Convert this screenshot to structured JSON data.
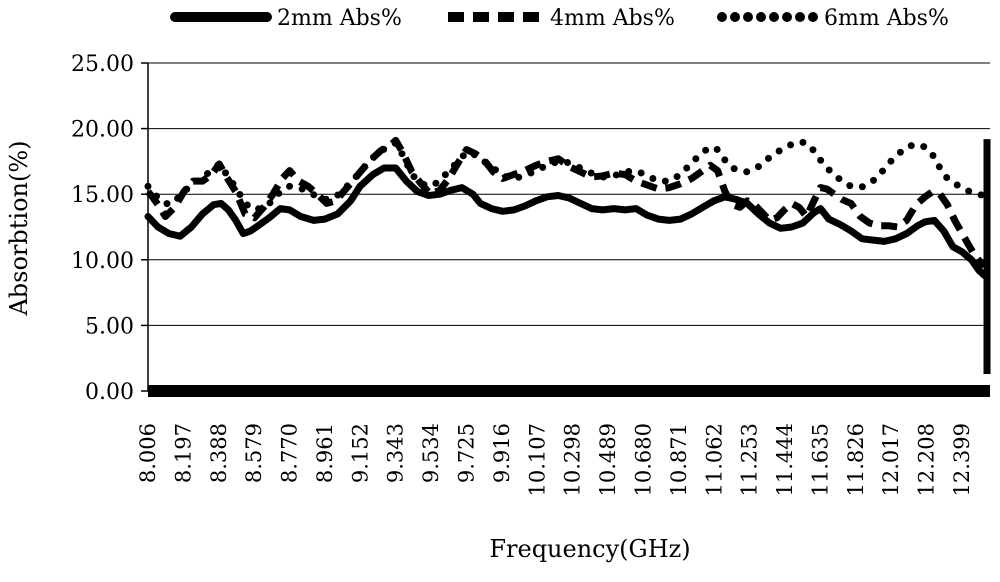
{
  "chart_data": {
    "type": "line",
    "title": "",
    "xlabel": "Frequency(GHz)",
    "ylabel": "Absorbtion(%)",
    "ylim": [
      0,
      25
    ],
    "xlim": [
      8.006,
      12.55
    ],
    "y_ticks": [
      "0.00",
      "5.00",
      "10.00",
      "15.00",
      "20.00",
      "25.00"
    ],
    "x_ticks": [
      "8.006",
      "8.197",
      "8.388",
      "8.579",
      "8.770",
      "8.961",
      "9.152",
      "9.343",
      "9.534",
      "9.725",
      "9.916",
      "10.107",
      "10.298",
      "10.489",
      "10.680",
      "10.871",
      "11.062",
      "11.253",
      "11.444",
      "11.635",
      "11.826",
      "12.017",
      "12.208",
      "12.399"
    ],
    "grid": "horizontal",
    "legend_position": "top",
    "series": [
      {
        "name": "2mm Abs%",
        "style": "solid",
        "x": [
          8.006,
          8.06,
          8.12,
          8.18,
          8.24,
          8.3,
          8.36,
          8.4,
          8.44,
          8.48,
          8.52,
          8.56,
          8.6,
          8.66,
          8.72,
          8.77,
          8.83,
          8.9,
          8.96,
          9.03,
          9.1,
          9.15,
          9.22,
          9.28,
          9.343,
          9.4,
          9.46,
          9.52,
          9.58,
          9.64,
          9.7,
          9.76,
          9.8,
          9.86,
          9.92,
          9.98,
          10.04,
          10.1,
          10.16,
          10.22,
          10.28,
          10.34,
          10.4,
          10.46,
          10.52,
          10.58,
          10.64,
          10.7,
          10.76,
          10.82,
          10.88,
          10.94,
          11.0,
          11.06,
          11.12,
          11.18,
          11.24,
          11.3,
          11.36,
          11.42,
          11.48,
          11.54,
          11.6,
          11.635,
          11.68,
          11.74,
          11.8,
          11.86,
          11.92,
          11.98,
          12.04,
          12.1,
          12.16,
          12.2,
          12.25,
          12.3,
          12.35,
          12.4,
          12.45,
          12.49,
          12.52
        ],
        "y": [
          13.3,
          12.5,
          12.0,
          11.8,
          12.5,
          13.5,
          14.2,
          14.3,
          13.8,
          13.0,
          12.0,
          12.2,
          12.6,
          13.2,
          13.9,
          13.8,
          13.3,
          13.0,
          13.1,
          13.5,
          14.5,
          15.6,
          16.5,
          17.0,
          17.0,
          16.0,
          15.2,
          14.9,
          15.0,
          15.3,
          15.5,
          15.0,
          14.3,
          13.9,
          13.7,
          13.8,
          14.1,
          14.5,
          14.8,
          14.9,
          14.7,
          14.3,
          13.9,
          13.8,
          13.9,
          13.8,
          13.9,
          13.4,
          13.1,
          13.0,
          13.1,
          13.5,
          14.0,
          14.5,
          14.8,
          14.6,
          14.3,
          13.5,
          12.8,
          12.4,
          12.5,
          12.8,
          13.6,
          13.9,
          13.1,
          12.7,
          12.2,
          11.6,
          11.5,
          11.4,
          11.6,
          12.0,
          12.6,
          12.9,
          13.0,
          12.2,
          11.0,
          10.6,
          10.0,
          9.2,
          8.8
        ]
      },
      {
        "name": "4mm Abs%",
        "style": "dashed",
        "x": [
          8.006,
          8.03,
          8.06,
          8.1,
          8.15,
          8.2,
          8.25,
          8.3,
          8.35,
          8.39,
          8.43,
          8.48,
          8.53,
          8.58,
          8.63,
          8.68,
          8.73,
          8.77,
          8.82,
          8.87,
          8.92,
          8.97,
          9.02,
          9.08,
          9.14,
          9.2,
          9.26,
          9.32,
          9.343,
          9.38,
          9.43,
          9.48,
          9.53,
          9.58,
          9.63,
          9.68,
          9.725,
          9.77,
          9.82,
          9.87,
          9.92,
          9.98,
          10.04,
          10.1,
          10.16,
          10.22,
          10.28,
          10.34,
          10.4,
          10.46,
          10.52,
          10.58,
          10.64,
          10.7,
          10.76,
          10.82,
          10.88,
          10.94,
          11.0,
          11.04,
          11.08,
          11.12,
          11.16,
          11.2,
          11.24,
          11.28,
          11.32,
          11.36,
          11.4,
          11.44,
          11.48,
          11.52,
          11.56,
          11.6,
          11.635,
          11.67,
          11.71,
          11.75,
          11.8,
          11.85,
          11.9,
          11.95,
          12.0,
          12.05,
          12.1,
          12.15,
          12.2,
          12.24,
          12.28,
          12.32,
          12.36,
          12.4,
          12.44,
          12.47,
          12.5,
          12.52
        ],
        "y": [
          15.2,
          14.8,
          14.2,
          13.3,
          14.0,
          15.2,
          16.0,
          16.0,
          16.5,
          17.3,
          16.3,
          15.2,
          13.5,
          13.2,
          14.0,
          15.0,
          16.2,
          16.8,
          16.0,
          15.6,
          15.0,
          14.3,
          14.5,
          15.5,
          16.5,
          17.5,
          18.3,
          18.8,
          19.1,
          18.2,
          16.7,
          15.8,
          15.0,
          15.3,
          16.2,
          17.4,
          18.4,
          18.1,
          17.6,
          16.7,
          16.2,
          16.5,
          16.8,
          17.2,
          17.5,
          17.7,
          17.1,
          16.7,
          16.3,
          16.4,
          16.6,
          16.5,
          16.0,
          15.7,
          15.4,
          15.5,
          15.8,
          16.2,
          16.8,
          17.2,
          16.8,
          15.2,
          14.2,
          14.0,
          14.5,
          14.2,
          13.6,
          13.0,
          13.2,
          13.8,
          14.3,
          14.0,
          13.3,
          14.5,
          15.5,
          15.4,
          15.0,
          14.6,
          14.3,
          13.3,
          12.8,
          12.6,
          12.6,
          12.5,
          13.0,
          14.2,
          14.8,
          15.2,
          15.0,
          14.2,
          13.0,
          12.0,
          11.0,
          10.3,
          9.8,
          9.5
        ]
      },
      {
        "name": "6mm Abs%",
        "style": "dotted",
        "x": [
          8.006,
          8.04,
          8.08,
          8.12,
          8.16,
          8.2,
          8.25,
          8.3,
          8.35,
          8.39,
          8.43,
          8.48,
          8.53,
          8.58,
          8.63,
          8.68,
          8.72,
          8.77,
          8.82,
          8.87,
          8.92,
          8.97,
          9.02,
          9.08,
          9.14,
          9.2,
          9.26,
          9.32,
          9.343,
          9.38,
          9.43,
          9.48,
          9.53,
          9.58,
          9.63,
          9.68,
          9.725,
          9.77,
          9.82,
          9.87,
          9.92,
          9.98,
          10.04,
          10.1,
          10.16,
          10.22,
          10.28,
          10.34,
          10.4,
          10.46,
          10.52,
          10.58,
          10.64,
          10.7,
          10.76,
          10.82,
          10.88,
          10.94,
          11.0,
          11.04,
          11.08,
          11.12,
          11.16,
          11.2,
          11.24,
          11.28,
          11.32,
          11.36,
          11.4,
          11.44,
          11.48,
          11.52,
          11.56,
          11.6,
          11.635,
          11.67,
          11.71,
          11.75,
          11.8,
          11.85,
          11.9,
          11.95,
          12.0,
          12.05,
          12.1,
          12.15,
          12.2,
          12.24,
          12.28,
          12.32,
          12.36,
          12.4,
          12.44,
          12.48,
          12.52
        ],
        "y": [
          15.6,
          15.0,
          14.5,
          14.2,
          14.6,
          15.2,
          15.8,
          16.3,
          16.8,
          17.3,
          16.5,
          15.5,
          14.3,
          13.8,
          14.0,
          14.5,
          15.2,
          15.6,
          15.5,
          15.2,
          14.8,
          14.6,
          14.8,
          15.6,
          16.5,
          17.5,
          18.3,
          18.7,
          18.9,
          18.0,
          16.5,
          15.8,
          15.6,
          16.0,
          16.8,
          17.5,
          18.2,
          18.0,
          17.5,
          17.0,
          16.4,
          16.2,
          16.4,
          16.8,
          17.2,
          17.5,
          17.4,
          17.0,
          16.6,
          16.3,
          16.4,
          16.7,
          16.8,
          16.4,
          16.0,
          16.0,
          16.5,
          17.4,
          18.2,
          18.6,
          18.4,
          17.6,
          17.0,
          16.8,
          16.7,
          16.9,
          17.3,
          17.8,
          18.2,
          18.5,
          18.8,
          19.0,
          18.9,
          18.3,
          17.6,
          17.0,
          16.5,
          16.0,
          15.6,
          15.5,
          15.8,
          16.4,
          17.3,
          18.0,
          18.6,
          18.8,
          18.6,
          18.0,
          17.0,
          16.2,
          15.8,
          15.5,
          15.2,
          15.0,
          14.9
        ]
      }
    ]
  }
}
